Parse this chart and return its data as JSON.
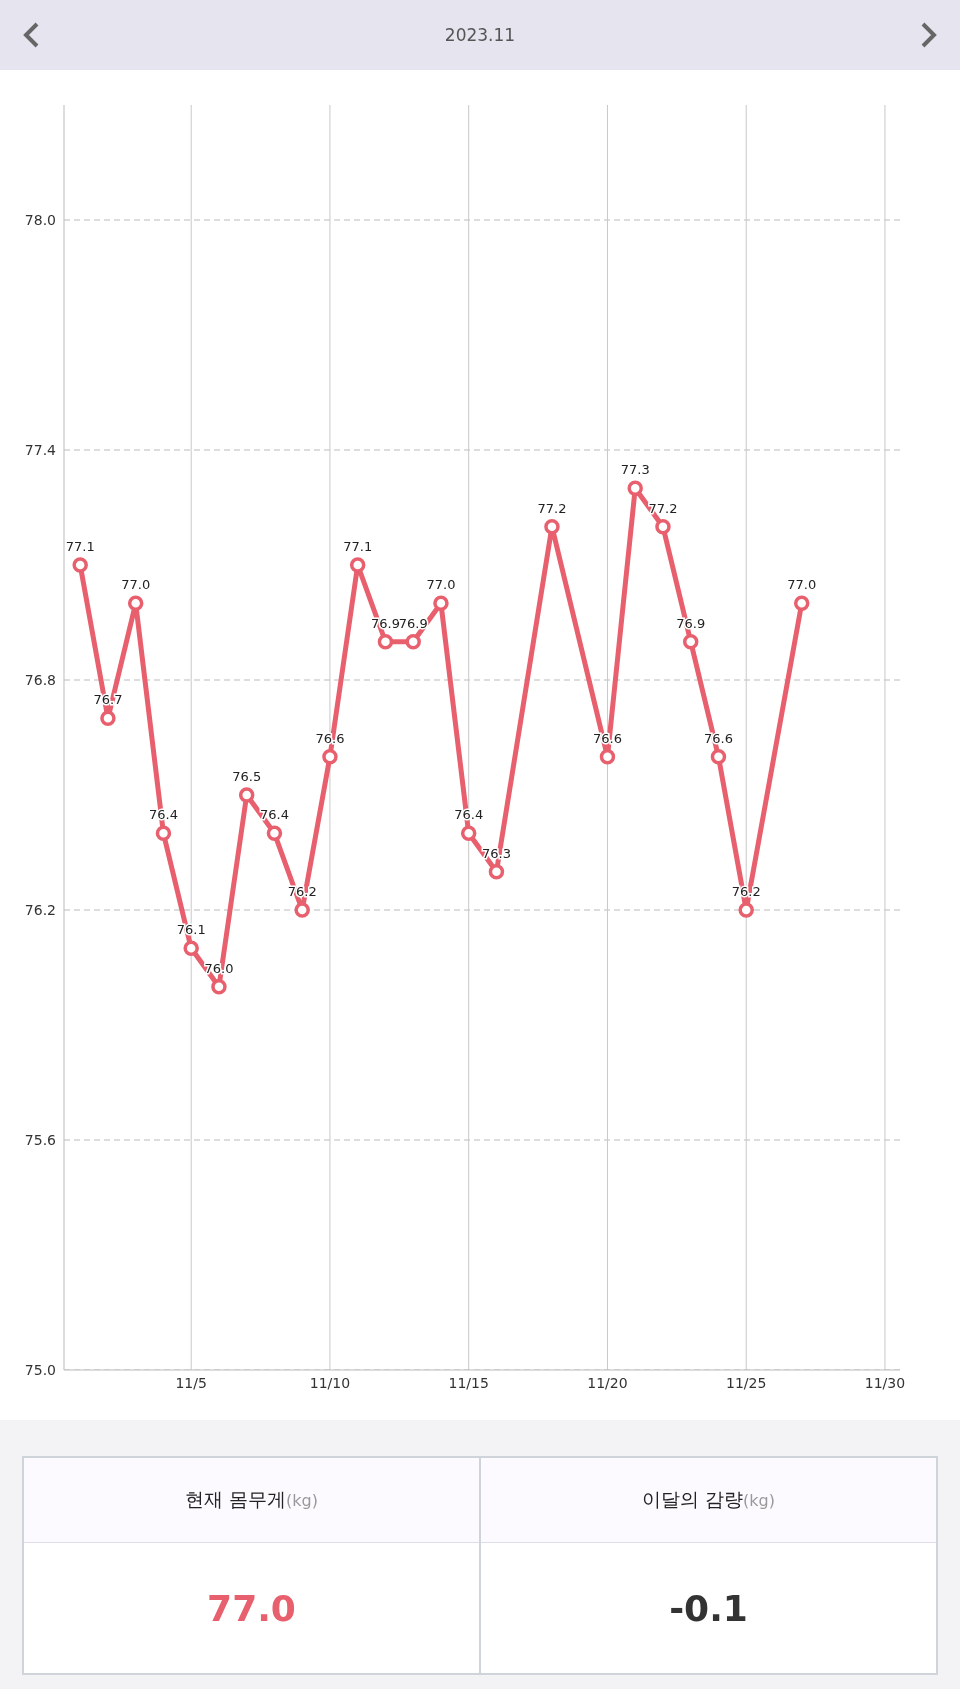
{
  "chart_data": [
    {
      "type": "line",
      "title": "2023.11",
      "x": [
        "2023-11-01",
        "2023-11-02",
        "2023-11-03",
        "2023-11-04",
        "2023-11-05",
        "2023-11-06",
        "2023-11-07",
        "2023-11-08",
        "2023-11-09",
        "2023-11-10",
        "2023-11-11",
        "2023-11-12",
        "2023-11-13",
        "2023-11-14",
        "2023-11-15",
        "2023-11-16",
        "2023-11-18",
        "2023-11-20",
        "2023-11-21",
        "2023-11-22",
        "2023-11-23",
        "2023-11-24",
        "2023-11-25",
        "2023-11-27"
      ],
      "series": [
        {
          "color": "#e8606e",
          "values": [
            77.1,
            76.7,
            77.0,
            76.4,
            76.1,
            76.0,
            76.5,
            76.4,
            76.2,
            76.6,
            77.1,
            76.9,
            76.9,
            77.0,
            76.4,
            76.3,
            77.2,
            76.6,
            77.3,
            77.2,
            76.9,
            76.6,
            76.2,
            77.0
          ],
          "value_labels": [
            "77.1",
            "76.7",
            "77.0",
            "76.4",
            "76.1",
            "76.0",
            "76.5",
            "76.4",
            "76.2",
            "76.6",
            "77.1",
            "76.9",
            "76.9",
            "77.0",
            "76.4",
            "76.3",
            "77.2",
            "76.6",
            "77.3",
            "77.2",
            "76.9",
            "76.6",
            "76.2",
            "77.0"
          ]
        }
      ],
      "xlim": [
        "2023-10-31T10:00",
        "2023-11-30T13:00"
      ],
      "xticks": [
        {
          "value": "2023-11-05",
          "label": "11/5"
        },
        {
          "value": "2023-11-10",
          "label": "11/10"
        },
        {
          "value": "2023-11-15",
          "label": "11/15"
        },
        {
          "value": "2023-11-20",
          "label": "11/20"
        },
        {
          "value": "2023-11-25",
          "label": "11/25"
        },
        {
          "value": "2023-11-30",
          "label": "11/30"
        }
      ],
      "ylim": [
        75.0,
        78.3
      ],
      "yticks": [
        {
          "value": 75.0,
          "label": "75.0"
        },
        {
          "value": 75.6,
          "label": "75.6"
        },
        {
          "value": 76.2,
          "label": "76.2"
        },
        {
          "value": 76.8,
          "label": "76.8"
        },
        {
          "value": 77.4,
          "label": "77.4"
        },
        {
          "value": 78.0,
          "label": "78.0"
        }
      ],
      "grid": true,
      "marker": "circle",
      "line_style": "solid"
    },
    {
      "type": "other",
      "categories": [
        "현재 몸무게(kg)",
        "이달의 감량(kg)"
      ],
      "value_labels": [
        "77.0",
        "-0.1"
      ]
    }
  ]
}
